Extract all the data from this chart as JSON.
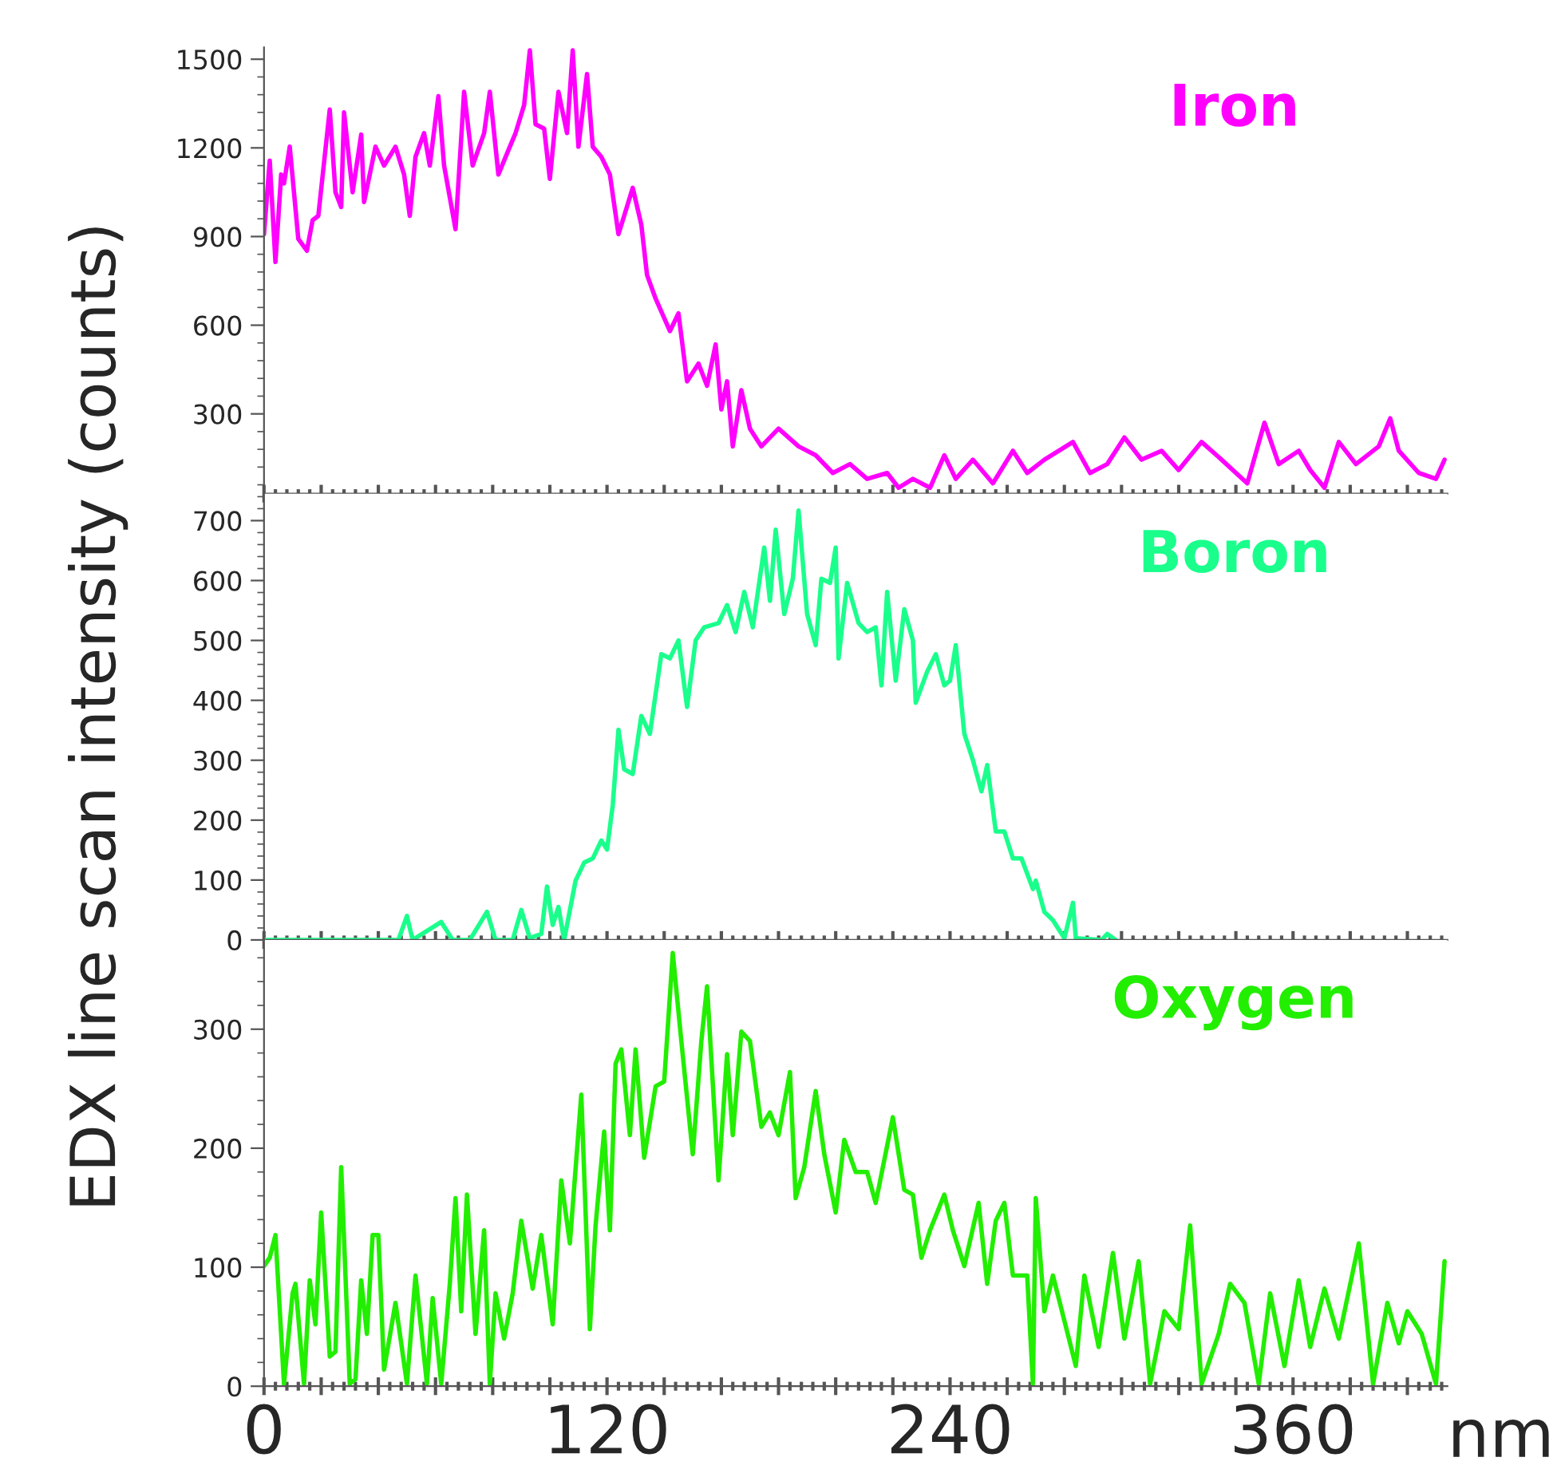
{
  "chart_data": [
    {
      "type": "line",
      "tick_labels": "y",
      "xlim": [
        0,
        414
      ],
      "ylim": [
        30,
        1540
      ],
      "yticks": [
        300,
        600,
        900,
        1200,
        1500
      ],
      "xticks": [
        {
          "value": 0,
          "label": null
        },
        {
          "value": 20,
          "label": null
        },
        {
          "value": 40,
          "label": null
        },
        {
          "value": 60,
          "label": null
        },
        {
          "value": 80,
          "label": null
        },
        {
          "value": 100,
          "label": null
        },
        {
          "value": 120,
          "label": null
        },
        {
          "value": 140,
          "label": null
        },
        {
          "value": 160,
          "label": null
        },
        {
          "value": 180,
          "label": null
        },
        {
          "value": 200,
          "label": null
        },
        {
          "value": 220,
          "label": null
        },
        {
          "value": 240,
          "label": null
        },
        {
          "value": 260,
          "label": null
        },
        {
          "value": 280,
          "label": null
        },
        {
          "value": 300,
          "label": null
        },
        {
          "value": 320,
          "label": null
        },
        {
          "value": 340,
          "label": null
        },
        {
          "value": 360,
          "label": null
        },
        {
          "value": 380,
          "label": null
        },
        {
          "value": 400,
          "label": null
        }
      ],
      "series": [
        {
          "name": "Iron",
          "color": "#ff00ff",
          "x": [
            0,
            2,
            4,
            6,
            7,
            9,
            12,
            15,
            17,
            19,
            23,
            25,
            27,
            28,
            31,
            34,
            35,
            39,
            42,
            46,
            49,
            51,
            53,
            56,
            58,
            61,
            63,
            67,
            70,
            73,
            77,
            79,
            82,
            86,
            88,
            91,
            93,
            95,
            98,
            100,
            103,
            106,
            108,
            110,
            113,
            115,
            118,
            121,
            124,
            126,
            129,
            132,
            134,
            137,
            142,
            145,
            148,
            152,
            155,
            158,
            160,
            162,
            164,
            167,
            170,
            174,
            180,
            187,
            193,
            199,
            205,
            211,
            218,
            222,
            227,
            233,
            238,
            242,
            248,
            255,
            262,
            267,
            273,
            283,
            289,
            295,
            301,
            307,
            314,
            320,
            328,
            335,
            344,
            350,
            355,
            362,
            366,
            371,
            376,
            382,
            390,
            394,
            397,
            404,
            410,
            413
          ],
          "values": [
            908,
            1157,
            814,
            1110,
            1080,
            1204,
            892,
            852,
            955,
            970,
            1330,
            1050,
            1000,
            1320,
            1050,
            1245,
            1017,
            1204,
            1140,
            1204,
            1110,
            970,
            1170,
            1250,
            1140,
            1375,
            1140,
            925,
            1390,
            1140,
            1250,
            1390,
            1110,
            1204,
            1250,
            1345,
            1530,
            1280,
            1265,
            1095,
            1390,
            1250,
            1530,
            1204,
            1450,
            1204,
            1170,
            1110,
            908,
            970,
            1065,
            940,
            770,
            690,
            580,
            640,
            410,
            470,
            395,
            535,
            315,
            410,
            190,
            380,
            250,
            190,
            250,
            190,
            160,
            100,
            130,
            80,
            100,
            50,
            80,
            50,
            160,
            80,
            145,
            65,
            175,
            100,
            145,
            205,
            100,
            130,
            220,
            145,
            175,
            110,
            205,
            145,
            65,
            270,
            130,
            175,
            110,
            50,
            205,
            130,
            190,
            285,
            175,
            100,
            80,
            145
          ]
        }
      ]
    },
    {
      "type": "line",
      "tick_labels": "y",
      "ylabel": "EDX line scan intensity (counts)",
      "xlim": [
        0,
        414
      ],
      "ylim": [
        0,
        745
      ],
      "yticks": [
        0,
        100,
        200,
        300,
        400,
        500,
        600,
        700
      ],
      "xticks": [
        {
          "value": 0,
          "label": null
        },
        {
          "value": 20,
          "label": null
        },
        {
          "value": 40,
          "label": null
        },
        {
          "value": 60,
          "label": null
        },
        {
          "value": 80,
          "label": null
        },
        {
          "value": 100,
          "label": null
        },
        {
          "value": 120,
          "label": null
        },
        {
          "value": 140,
          "label": null
        },
        {
          "value": 160,
          "label": null
        },
        {
          "value": 180,
          "label": null
        },
        {
          "value": 200,
          "label": null
        },
        {
          "value": 220,
          "label": null
        },
        {
          "value": 240,
          "label": null
        },
        {
          "value": 260,
          "label": null
        },
        {
          "value": 280,
          "label": null
        },
        {
          "value": 300,
          "label": null
        },
        {
          "value": 320,
          "label": null
        },
        {
          "value": 340,
          "label": null
        },
        {
          "value": 360,
          "label": null
        },
        {
          "value": 380,
          "label": null
        },
        {
          "value": 400,
          "label": null
        }
      ],
      "series": [
        {
          "name": "Boron",
          "color": "#1aff8c",
          "x": [
            0,
            47,
            50,
            52,
            58,
            62,
            66,
            72,
            78,
            81,
            87,
            90,
            93,
            97,
            99,
            101,
            103,
            105,
            109,
            112,
            115,
            118,
            120,
            122,
            124,
            126,
            129,
            132,
            135,
            139,
            142,
            145,
            148,
            151,
            154,
            159,
            162,
            165,
            168,
            171,
            175,
            177,
            179,
            182,
            185,
            187,
            190,
            193,
            195,
            198,
            200,
            201,
            204,
            208,
            211,
            214,
            216,
            218,
            221,
            224,
            227,
            228,
            232,
            235,
            238,
            240,
            242,
            245,
            248,
            251,
            253,
            256,
            259,
            262,
            265,
            269,
            270,
            273,
            276,
            280,
            283,
            284,
            293,
            295,
            298
          ],
          "values": [
            0,
            0,
            40,
            0,
            18,
            30,
            0,
            0,
            47,
            0,
            0,
            50,
            3,
            10,
            89,
            25,
            55,
            0,
            99,
            129,
            136,
            166,
            151,
            225,
            351,
            285,
            277,
            374,
            344,
            477,
            470,
            500,
            389,
            500,
            522,
            529,
            559,
            514,
            581,
            522,
            655,
            566,
            685,
            544,
            603,
            717,
            544,
            492,
            603,
            596,
            655,
            470,
            596,
            529,
            514,
            522,
            425,
            581,
            433,
            552,
            500,
            396,
            448,
            477,
            425,
            433,
            492,
            344,
            300,
            248,
            292,
            181,
            181,
            136,
            136,
            85,
            99,
            47,
            33,
            3,
            62,
            3,
            0,
            10,
            0
          ]
        }
      ]
    },
    {
      "type": "line",
      "xlabel": "nm",
      "xlim": [
        0,
        414
      ],
      "ylim": [
        0,
        375
      ],
      "yticks": [
        0,
        100,
        200,
        300
      ],
      "xticks": [
        0,
        {
          "value": 20,
          "label": null
        },
        {
          "value": 40,
          "label": null
        },
        {
          "value": 60,
          "label": null
        },
        {
          "value": 80,
          "label": null
        },
        {
          "value": 100,
          "label": null
        },
        120,
        {
          "value": 140,
          "label": null
        },
        {
          "value": 160,
          "label": null
        },
        {
          "value": 180,
          "label": null
        },
        {
          "value": 200,
          "label": null
        },
        {
          "value": 220,
          "label": null
        },
        240,
        {
          "value": 260,
          "label": null
        },
        {
          "value": 280,
          "label": null
        },
        {
          "value": 300,
          "label": null
        },
        {
          "value": 320,
          "label": null
        },
        {
          "value": 340,
          "label": null
        },
        360,
        {
          "value": 380,
          "label": null
        },
        {
          "value": 400,
          "label": null
        }
      ],
      "series": [
        {
          "name": "Oxygen",
          "color": "#22ee00",
          "x": [
            0,
            2,
            4,
            7,
            10,
            11,
            14,
            16,
            18,
            20,
            23,
            25,
            27,
            30,
            32,
            34,
            36,
            38,
            40,
            42,
            46,
            50,
            53,
            57,
            59,
            62,
            65,
            67,
            69,
            71,
            74,
            77,
            79,
            81,
            84,
            87,
            90,
            94,
            97,
            101,
            104,
            107,
            111,
            114,
            116,
            119,
            121,
            123,
            125,
            128,
            130,
            133,
            137,
            140,
            143,
            146,
            150,
            153,
            155,
            159,
            162,
            164,
            167,
            170,
            174,
            177,
            180,
            184,
            186,
            189,
            193,
            196,
            200,
            203,
            207,
            211,
            214,
            220,
            224,
            227,
            230,
            233,
            238,
            241,
            245,
            250,
            253,
            256,
            259,
            262,
            267,
            269,
            270,
            273,
            276,
            280,
            284,
            287,
            292,
            297,
            301,
            306,
            310,
            315,
            320,
            324,
            328,
            334,
            338,
            343,
            348,
            352,
            357,
            362,
            366,
            371,
            376,
            383,
            388,
            393,
            397,
            400,
            405,
            410,
            413
          ],
          "values": [
            101,
            108,
            127,
            2,
            78,
            86,
            2,
            89,
            52,
            146,
            25,
            29,
            184,
            2,
            6,
            89,
            44,
            127,
            127,
            14,
            70,
            2,
            93,
            2,
            74,
            2,
            86,
            158,
            63,
            161,
            44,
            131,
            2,
            78,
            40,
            78,
            139,
            82,
            127,
            52,
            173,
            120,
            245,
            48,
            135,
            214,
            131,
            271,
            283,
            211,
            283,
            192,
            252,
            256,
            364,
            290,
            195,
            290,
            336,
            173,
            279,
            211,
            298,
            290,
            218,
            230,
            211,
            264,
            158,
            184,
            248,
            195,
            146,
            207,
            180,
            180,
            154,
            226,
            165,
            161,
            108,
            131,
            161,
            131,
            101,
            154,
            86,
            139,
            154,
            93,
            93,
            2,
            158,
            63,
            93,
            55,
            17,
            93,
            33,
            112,
            40,
            105,
            2,
            63,
            48,
            135,
            2,
            44,
            86,
            70,
            2,
            78,
            17,
            89,
            33,
            82,
            40,
            120,
            2,
            70,
            36,
            63,
            44,
            2,
            105
          ]
        }
      ]
    }
  ]
}
